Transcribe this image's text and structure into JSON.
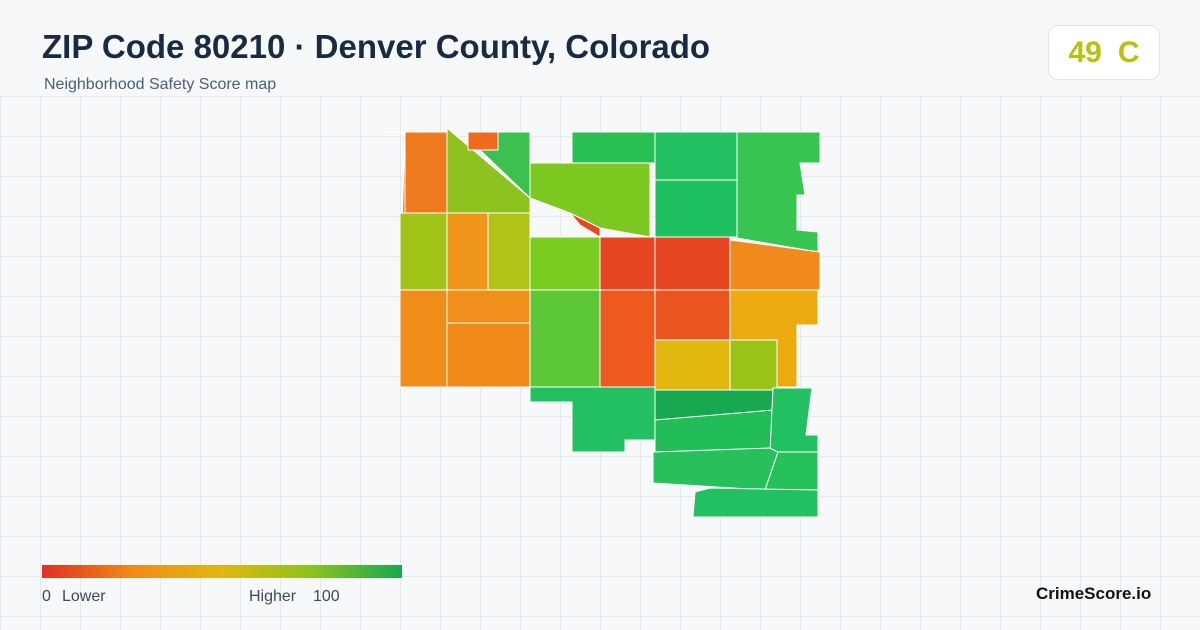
{
  "header": {
    "title": "ZIP Code 80210 · Denver County, Colorado",
    "subtitle": "Neighborhood Safety Score map"
  },
  "score": {
    "value": "49",
    "grade": "C"
  },
  "legend": {
    "min": "0",
    "min_label": "Lower",
    "max_label": "Higher",
    "max": "100"
  },
  "brand": "CrimeScore.io"
}
